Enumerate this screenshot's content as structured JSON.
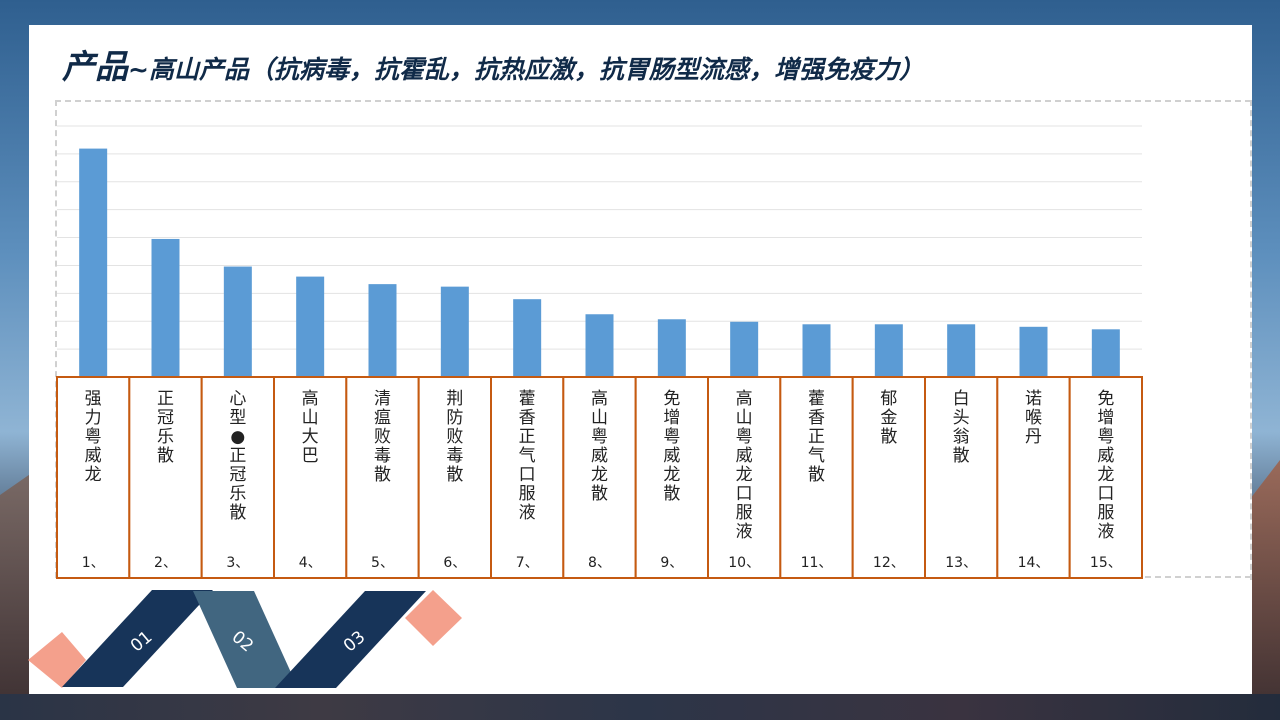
{
  "title": {
    "main": "产品",
    "rest": "~高山产品（抗病毒，抗霍乱，抗热应激，抗胃肠型流感，增强免疫力）"
  },
  "chart_data": {
    "type": "bar",
    "title": "",
    "xlabel": "",
    "ylabel": "",
    "ylim": [
      0,
      100
    ],
    "grid": true,
    "categories": [
      {
        "num": "1、",
        "name": "强力粤威龙"
      },
      {
        "num": "2、",
        "name": "正冠乐散"
      },
      {
        "num": "3、",
        "name": "心型●正冠乐散"
      },
      {
        "num": "4、",
        "name": "高山大巴"
      },
      {
        "num": "5、",
        "name": "清瘟败毒散"
      },
      {
        "num": "6、",
        "name": "荆防败毒散"
      },
      {
        "num": "7、",
        "name": "藿香正气口服液"
      },
      {
        "num": "8、",
        "name": "高山粤威龙散"
      },
      {
        "num": "9、",
        "name": "免增粤威龙散"
      },
      {
        "num": "10、",
        "name": "高山粤威龙口服液"
      },
      {
        "num": "11、",
        "name": "藿香正气散"
      },
      {
        "num": "12、",
        "name": "郁金散"
      },
      {
        "num": "13、",
        "name": "白头翁散"
      },
      {
        "num": "14、",
        "name": "诺喉丹"
      },
      {
        "num": "15、",
        "name": "免增粤威龙口服液"
      }
    ],
    "values": [
      91,
      55,
      44,
      40,
      37,
      36,
      31,
      25,
      23,
      22,
      21,
      21,
      21,
      20,
      19
    ],
    "bar_color": "#5b9bd5",
    "label_border_color": "#c55a11"
  },
  "ribbon": {
    "labels": [
      "01",
      "02",
      "03"
    ],
    "colors": {
      "dark": "#173459",
      "mid": "#416680",
      "accent": "#f4a08c"
    }
  }
}
